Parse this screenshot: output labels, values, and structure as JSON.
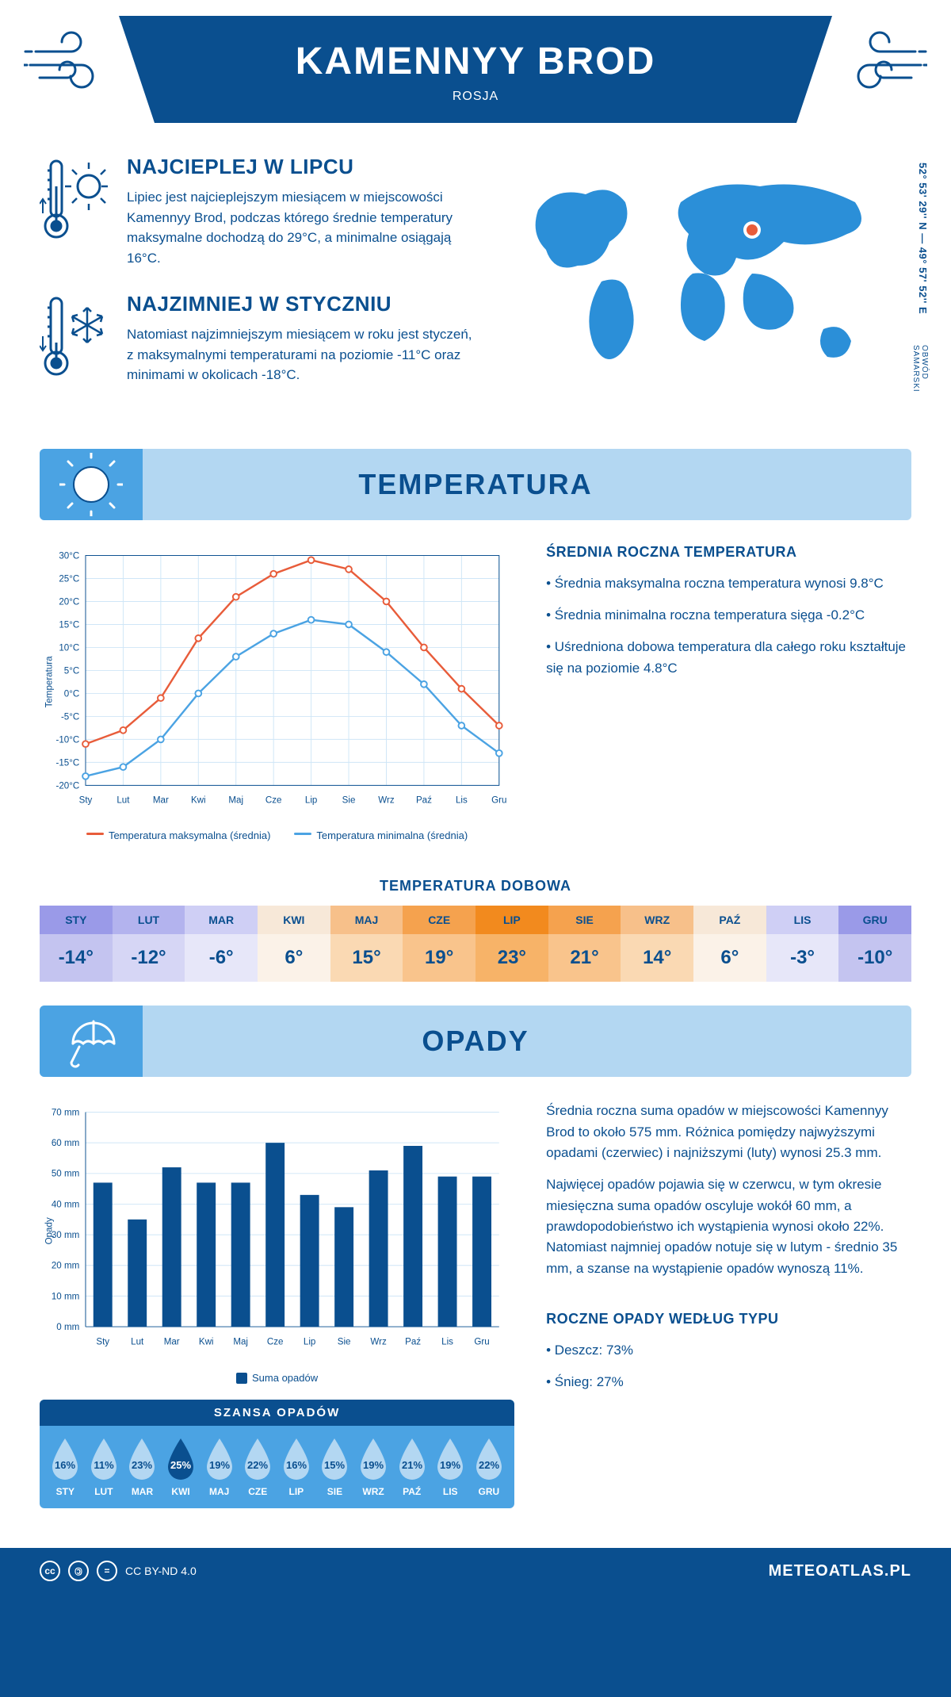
{
  "header": {
    "title": "KAMENNYY BROD",
    "country": "ROSJA"
  },
  "coords": "52° 53' 29'' N — 49° 57' 52'' E",
  "region": "OBWÓD SAMARSKI",
  "warmest": {
    "title": "NAJCIEPLEJ W LIPCU",
    "text": "Lipiec jest najcieplejszym miesiącem w miejscowości Kamennyy Brod, podczas którego średnie temperatury maksymalne dochodzą do 29°C, a minimalne osiągają 16°C."
  },
  "coldest": {
    "title": "NAJZIMNIEJ W STYCZNIU",
    "text": "Natomiast najzimniejszym miesiącem w roku jest styczeń, z maksymalnymi temperaturami na poziomie -11°C oraz minimami w okolicach -18°C."
  },
  "temp_section_title": "TEMPERATURA",
  "precip_section_title": "OPADY",
  "months": [
    "Sty",
    "Lut",
    "Mar",
    "Kwi",
    "Maj",
    "Cze",
    "Lip",
    "Sie",
    "Wrz",
    "Paź",
    "Lis",
    "Gru"
  ],
  "months_upper": [
    "STY",
    "LUT",
    "MAR",
    "KWI",
    "MAJ",
    "CZE",
    "LIP",
    "SIE",
    "WRZ",
    "PAŹ",
    "LIS",
    "GRU"
  ],
  "temp_chart": {
    "type": "line",
    "ylabel": "Temperatura",
    "ylim": [
      -20,
      30
    ],
    "ytick_step": 5,
    "max_series": {
      "label": "Temperatura maksymalna (średnia)",
      "color": "#e85c3a",
      "values": [
        -11,
        -8,
        -1,
        12,
        21,
        26,
        29,
        27,
        20,
        10,
        1,
        -7
      ]
    },
    "min_series": {
      "label": "Temperatura minimalna (średnia)",
      "color": "#4ba3e3",
      "values": [
        -18,
        -16,
        -10,
        0,
        8,
        13,
        16,
        15,
        9,
        2,
        -7,
        -13
      ]
    },
    "grid_color": "#cfe6f7",
    "axis_color": "#0a4f8f"
  },
  "annual_temp": {
    "title": "ŚREDNIA ROCZNA TEMPERATURA",
    "bullets": [
      "• Średnia maksymalna roczna temperatura wynosi 9.8°C",
      "• Średnia minimalna roczna temperatura sięga -0.2°C",
      "• Uśredniona dobowa temperatura dla całego roku kształtuje się na poziomie 4.8°C"
    ]
  },
  "daily_temp": {
    "title": "TEMPERATURA DOBOWA",
    "values": [
      "-14°",
      "-12°",
      "-6°",
      "6°",
      "15°",
      "19°",
      "23°",
      "21°",
      "14°",
      "6°",
      "-3°",
      "-10°"
    ],
    "header_colors": [
      "#9a9ae8",
      "#b3b3ee",
      "#cfcff5",
      "#f7e8d8",
      "#f7c08a",
      "#f5a24e",
      "#f28a1e",
      "#f5a24e",
      "#f7c08a",
      "#f7e8d8",
      "#cfcff5",
      "#9a9ae8"
    ],
    "body_colors": [
      "#c4c4f0",
      "#d6d6f5",
      "#e7e7f9",
      "#fbf2e8",
      "#fad9b3",
      "#f9c48c",
      "#f7b368",
      "#f9c48c",
      "#fad9b3",
      "#fbf2e8",
      "#e7e7f9",
      "#c4c4f0"
    ],
    "text_color": "#0a4f8f"
  },
  "precip_chart": {
    "type": "bar",
    "ylabel": "Opady",
    "ylim": [
      0,
      70
    ],
    "ytick_step": 10,
    "values": [
      47,
      35,
      52,
      47,
      47,
      60,
      43,
      39,
      51,
      59,
      49,
      49
    ],
    "bar_color": "#0a4f8f",
    "grid_color": "#cfe6f7",
    "legend": "Suma opadów"
  },
  "precip_text": {
    "p1": "Średnia roczna suma opadów w miejscowości Kamennyy Brod to około 575 mm. Różnica pomiędzy najwyższymi opadami (czerwiec) i najniższymi (luty) wynosi 25.3 mm.",
    "p2": "Najwięcej opadów pojawia się w czerwcu, w tym okresie miesięczna suma opadów oscyluje wokół 60 mm, a prawdopodobieństwo ich wystąpienia wynosi około 22%. Natomiast najmniej opadów notuje się w lutym - średnio 35 mm, a szanse na wystąpienie opadów wynoszą 11%."
  },
  "chance": {
    "title": "SZANSA OPADÓW",
    "values": [
      "16%",
      "11%",
      "23%",
      "25%",
      "19%",
      "22%",
      "16%",
      "15%",
      "19%",
      "21%",
      "19%",
      "22%"
    ],
    "max_index": 3,
    "drop_color": "#b3d7f2",
    "drop_max_color": "#0a4f8f",
    "drop_text": "#0a4f8f",
    "drop_max_text": "#ffffff"
  },
  "precip_type": {
    "title": "ROCZNE OPADY WEDŁUG TYPU",
    "bullets": [
      "• Deszcz: 73%",
      "• Śnieg: 27%"
    ]
  },
  "footer": {
    "license": "CC BY-ND 4.0",
    "site": "METEOATLAS.PL"
  }
}
